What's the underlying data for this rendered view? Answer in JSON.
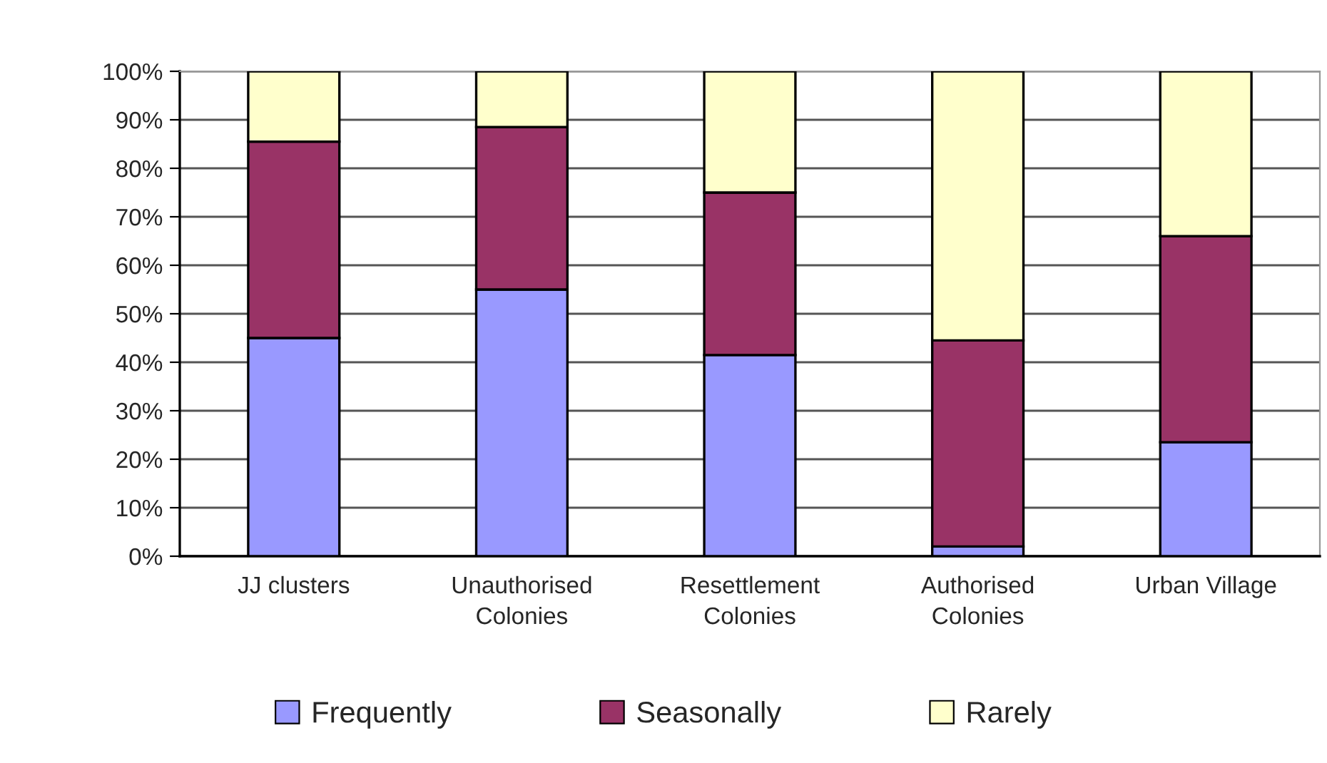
{
  "chart_data": {
    "type": "bar",
    "stacked": true,
    "categories": [
      "JJ clusters",
      "Unauthorised\nColonies",
      "Resettlement\nColonies",
      "Authorised\nColonies",
      "Urban Village"
    ],
    "series": [
      {
        "name": "Frequently",
        "color": "#9999ff",
        "values": [
          45,
          55,
          41.5,
          2,
          23.5
        ]
      },
      {
        "name": "Seasonally",
        "color": "#993366",
        "values": [
          40.5,
          33.5,
          33.5,
          42.5,
          42.5
        ]
      },
      {
        "name": "Rarely",
        "color": "#ffffcc",
        "values": [
          14.5,
          11.5,
          25,
          55.5,
          34
        ]
      }
    ],
    "ylim": [
      0,
      100
    ],
    "yticks": [
      {
        "value": 0,
        "label": "0%"
      },
      {
        "value": 10,
        "label": "10%"
      },
      {
        "value": 20,
        "label": "20%"
      },
      {
        "value": 30,
        "label": "30%"
      },
      {
        "value": 40,
        "label": "40%"
      },
      {
        "value": 50,
        "label": "50%"
      },
      {
        "value": 60,
        "label": "60%"
      },
      {
        "value": 70,
        "label": "70%"
      },
      {
        "value": 80,
        "label": "80%"
      },
      {
        "value": 90,
        "label": "90%"
      },
      {
        "value": 100,
        "label": "100%"
      }
    ],
    "grid": "y",
    "legend": "bottom"
  }
}
